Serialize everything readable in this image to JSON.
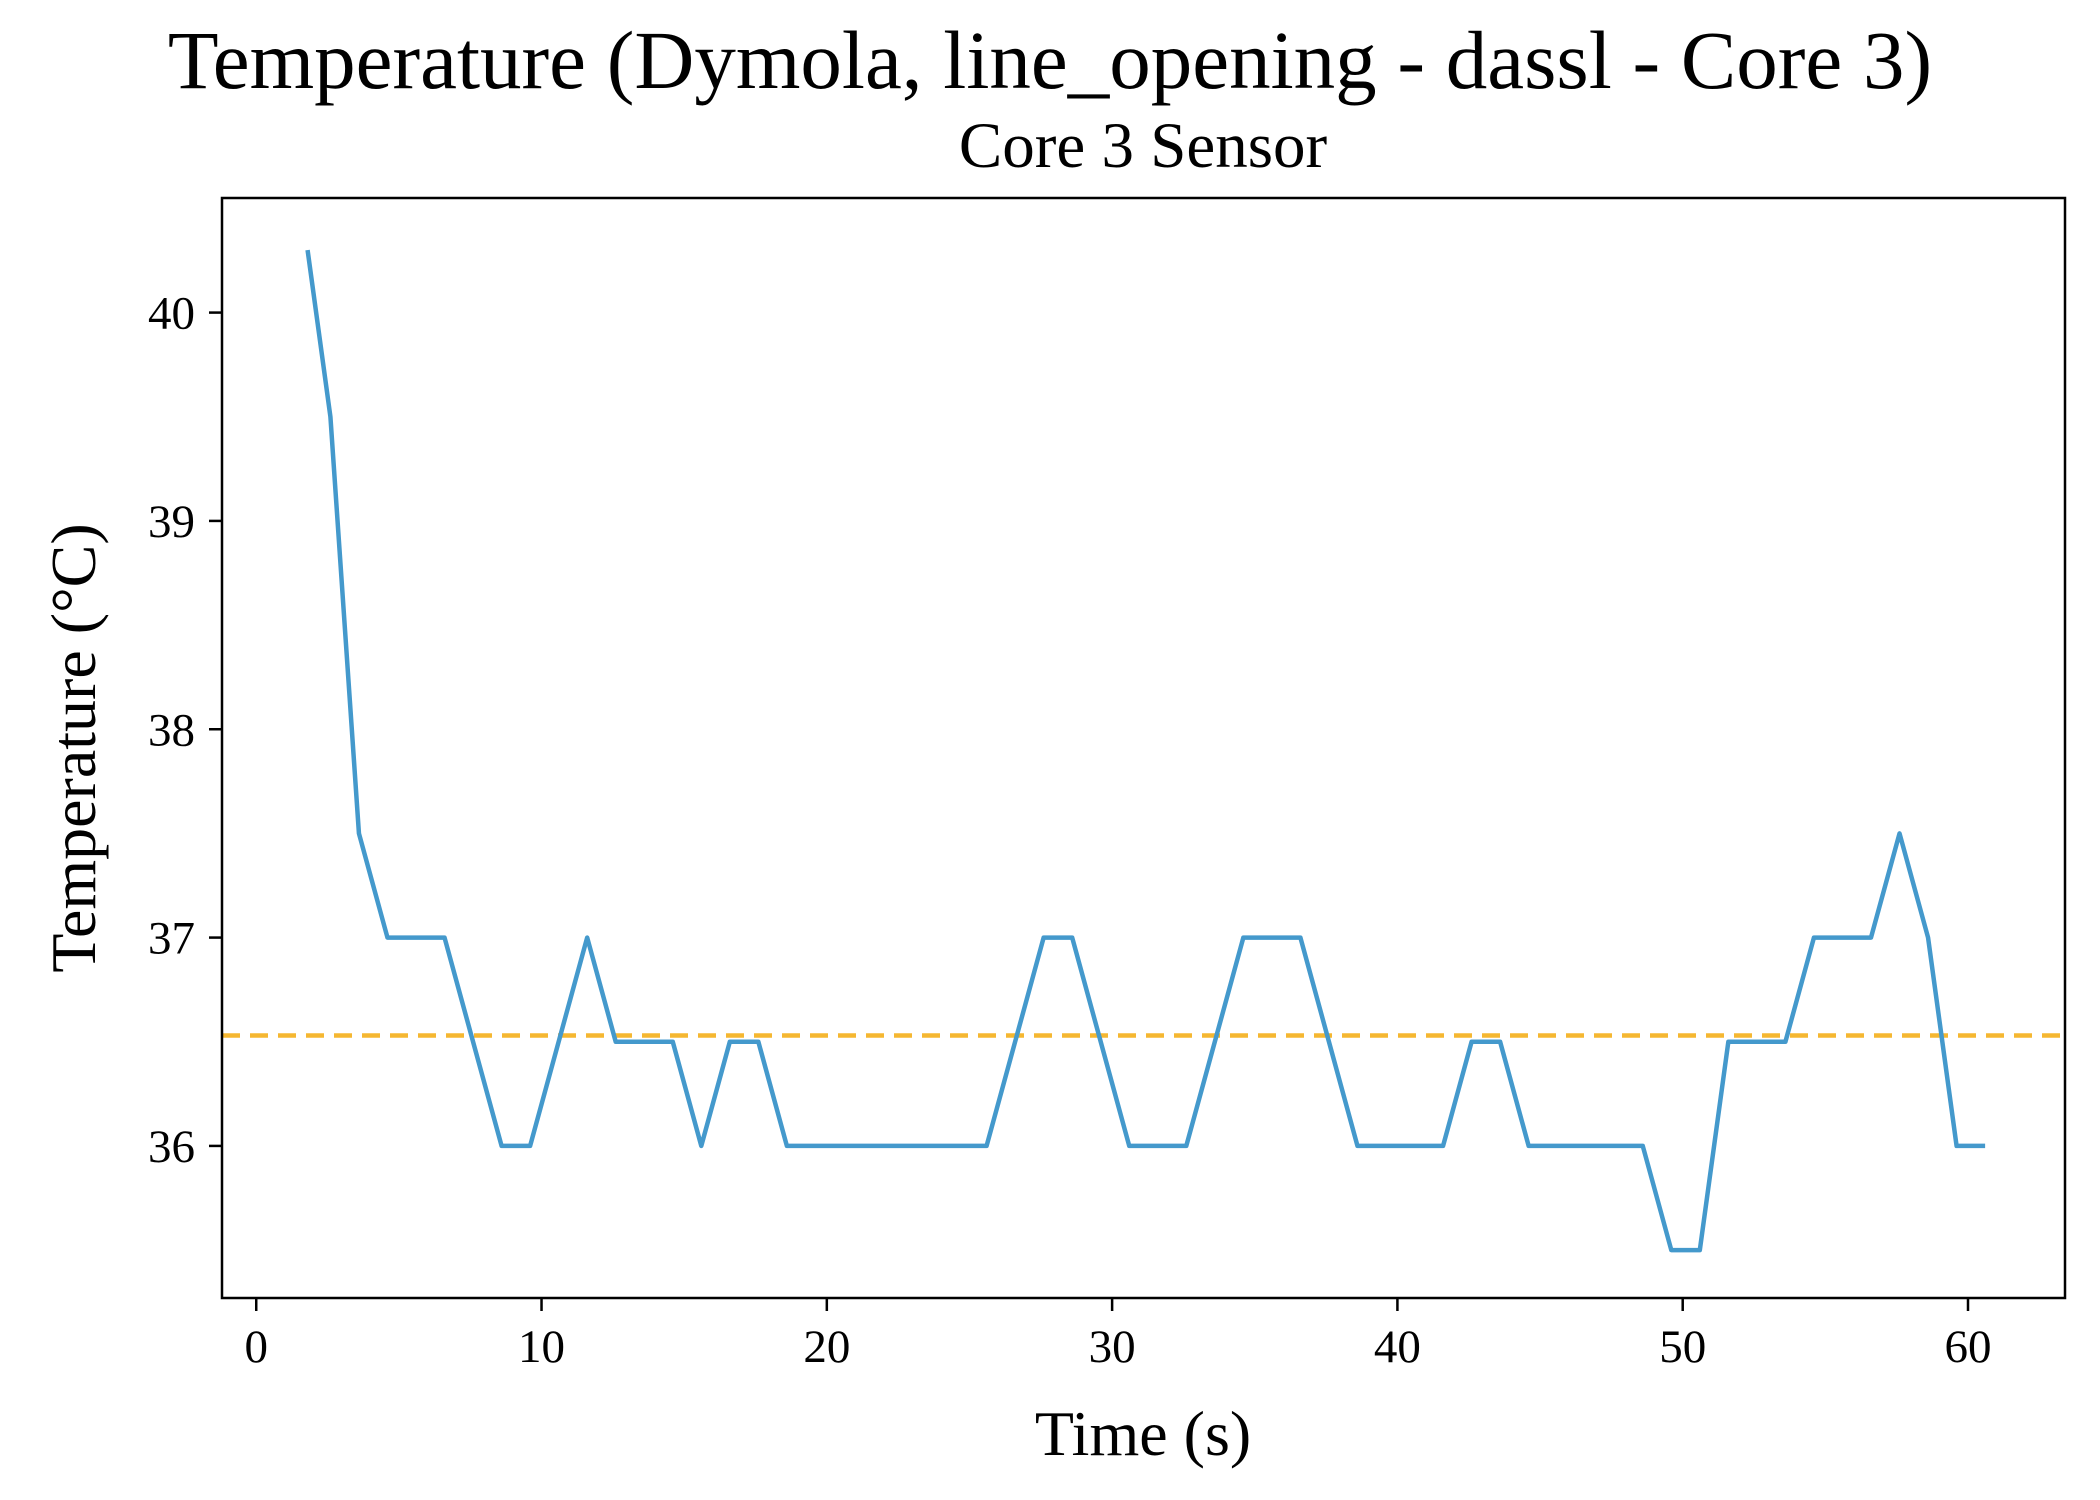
{
  "chart_data": {
    "type": "line",
    "title": "Temperature (Dymola, line_opening - dassl - Core 3)",
    "subtitle": "Core 3 Sensor",
    "xlabel": "Time (s)",
    "ylabel": "Temperature (°C)",
    "xlim": [
      -1.2,
      63.4
    ],
    "ylim": [
      35.27,
      40.55
    ],
    "x_ticks": [
      0,
      10,
      20,
      30,
      40,
      50,
      60
    ],
    "y_ticks": [
      36,
      37,
      38,
      39,
      40
    ],
    "x_tick_labels": [
      "0",
      "10",
      "20",
      "30",
      "40",
      "50",
      "60"
    ],
    "y_tick_labels": [
      "36",
      "37",
      "38",
      "39",
      "40"
    ],
    "grid": false,
    "series": [
      {
        "color": "#4499cc",
        "style": "solid",
        "points": [
          [
            1.8,
            40.3
          ],
          [
            2.6,
            39.5
          ],
          [
            3.6,
            37.5
          ],
          [
            4.6,
            37.0
          ],
          [
            6.6,
            37.0
          ],
          [
            8.6,
            36.0
          ],
          [
            9.6,
            36.0
          ],
          [
            11.6,
            37.0
          ],
          [
            12.6,
            36.5
          ],
          [
            14.6,
            36.5
          ],
          [
            15.6,
            36.0
          ],
          [
            16.6,
            36.5
          ],
          [
            17.6,
            36.5
          ],
          [
            18.6,
            36.0
          ],
          [
            25.6,
            36.0
          ],
          [
            27.6,
            37.0
          ],
          [
            28.6,
            37.0
          ],
          [
            30.6,
            36.0
          ],
          [
            32.6,
            36.0
          ],
          [
            34.6,
            37.0
          ],
          [
            36.6,
            37.0
          ],
          [
            38.6,
            36.0
          ],
          [
            41.6,
            36.0
          ],
          [
            42.6,
            36.5
          ],
          [
            43.6,
            36.5
          ],
          [
            44.6,
            36.0
          ],
          [
            48.6,
            36.0
          ],
          [
            49.6,
            35.5
          ],
          [
            50.6,
            35.5
          ],
          [
            51.6,
            36.5
          ],
          [
            53.6,
            36.5
          ],
          [
            54.6,
            37.0
          ],
          [
            56.6,
            37.0
          ],
          [
            57.6,
            37.5
          ],
          [
            58.6,
            37.0
          ],
          [
            59.6,
            36.0
          ],
          [
            60.6,
            36.0
          ]
        ]
      }
    ],
    "reference_line": {
      "y": 36.53,
      "color": "#f5b731",
      "style": "dashed"
    }
  }
}
